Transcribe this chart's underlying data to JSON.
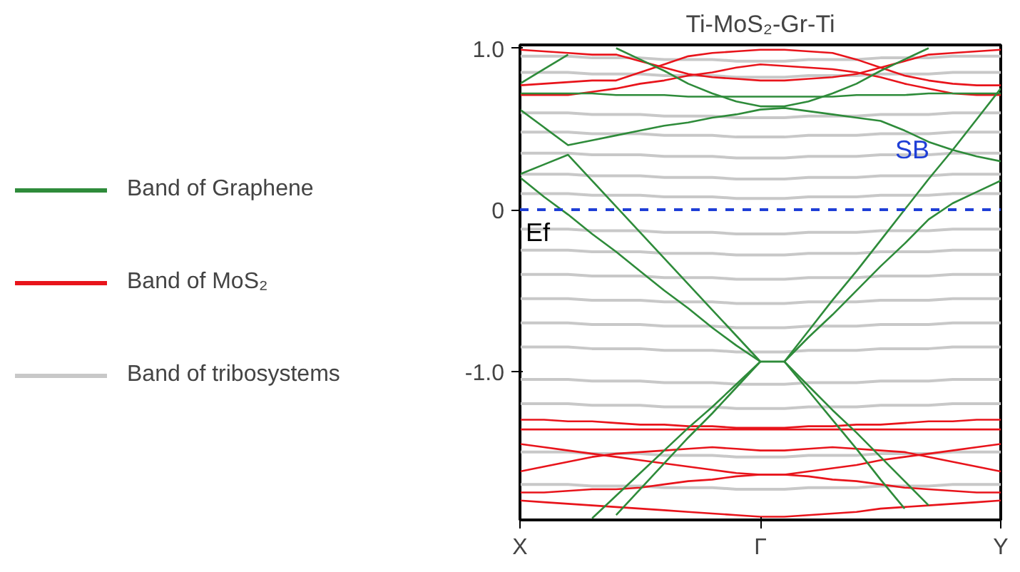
{
  "chart_data": {
    "type": "line",
    "title": "Ti-MoS₂-Gr-Ti",
    "categories": [
      "X",
      null,
      null,
      null,
      null,
      null,
      null,
      null,
      null,
      null,
      "Γ",
      null,
      null,
      null,
      null,
      null,
      null,
      null,
      null,
      null,
      "Y"
    ],
    "ylim": [
      -1.92,
      1.02
    ],
    "yticks": [
      {
        "value": 1,
        "label": "1.0"
      },
      0,
      {
        "value": -1,
        "label": "-1.0"
      }
    ],
    "legend": "left",
    "line_style": "solid",
    "ref_lines": [
      {
        "axis": "y",
        "value": 0,
        "label": "Ef",
        "color": "#1f3fd6",
        "line_style": "dashed"
      }
    ],
    "annotations": [
      "SB"
    ],
    "series": [
      {
        "name": "Band of tribosystems",
        "color": "#c8c8c8",
        "values": [
          0.95,
          0.95,
          0.95,
          0.94,
          0.94,
          0.94,
          0.93,
          0.93,
          0.93,
          0.92,
          0.92,
          0.92,
          0.93,
          0.93,
          0.93,
          0.94,
          0.94,
          0.94,
          0.95,
          0.95,
          0.95
        ]
      },
      {
        "color": "#c8c8c8",
        "values": [
          0.85,
          0.85,
          0.85,
          0.84,
          0.84,
          0.84,
          0.83,
          0.83,
          0.83,
          0.82,
          0.82,
          0.82,
          0.83,
          0.83,
          0.83,
          0.84,
          0.84,
          0.84,
          0.85,
          0.85,
          0.85
        ]
      },
      {
        "color": "#c8c8c8",
        "values": [
          0.6,
          0.6,
          0.6,
          0.59,
          0.59,
          0.59,
          0.58,
          0.58,
          0.58,
          0.57,
          0.57,
          0.57,
          0.58,
          0.58,
          0.58,
          0.59,
          0.59,
          0.59,
          0.6,
          0.6,
          0.6
        ]
      },
      {
        "color": "#c8c8c8",
        "values": [
          0.48,
          0.48,
          0.48,
          0.47,
          0.47,
          0.47,
          0.46,
          0.46,
          0.46,
          0.45,
          0.45,
          0.45,
          0.46,
          0.46,
          0.46,
          0.47,
          0.47,
          0.47,
          0.48,
          0.48,
          0.48
        ]
      },
      {
        "color": "#c8c8c8",
        "values": [
          0.35,
          0.35,
          0.35,
          0.34,
          0.34,
          0.34,
          0.33,
          0.33,
          0.33,
          0.32,
          0.32,
          0.32,
          0.33,
          0.33,
          0.33,
          0.34,
          0.34,
          0.34,
          0.35,
          0.35,
          0.35
        ]
      },
      {
        "color": "#c8c8c8",
        "values": [
          0.22,
          0.22,
          0.22,
          0.21,
          0.21,
          0.21,
          0.2,
          0.2,
          0.2,
          0.19,
          0.19,
          0.19,
          0.2,
          0.2,
          0.2,
          0.21,
          0.21,
          0.21,
          0.22,
          0.22,
          0.22
        ]
      },
      {
        "color": "#c8c8c8",
        "values": [
          0.1,
          0.1,
          0.1,
          0.09,
          0.09,
          0.09,
          0.08,
          0.08,
          0.08,
          0.07,
          0.07,
          0.07,
          0.08,
          0.08,
          0.08,
          0.09,
          0.09,
          0.09,
          0.1,
          0.1,
          0.1
        ]
      },
      {
        "color": "#c8c8c8",
        "values": [
          -0.12,
          -0.12,
          -0.12,
          -0.13,
          -0.13,
          -0.13,
          -0.14,
          -0.14,
          -0.14,
          -0.15,
          -0.15,
          -0.15,
          -0.14,
          -0.14,
          -0.14,
          -0.13,
          -0.13,
          -0.13,
          -0.12,
          -0.12,
          -0.12
        ]
      },
      {
        "color": "#c8c8c8",
        "values": [
          -0.25,
          -0.25,
          -0.25,
          -0.26,
          -0.26,
          -0.26,
          -0.27,
          -0.27,
          -0.27,
          -0.28,
          -0.28,
          -0.28,
          -0.27,
          -0.27,
          -0.27,
          -0.26,
          -0.26,
          -0.26,
          -0.25,
          -0.25,
          -0.25
        ]
      },
      {
        "color": "#c8c8c8",
        "values": [
          -0.4,
          -0.4,
          -0.4,
          -0.41,
          -0.41,
          -0.41,
          -0.42,
          -0.42,
          -0.42,
          -0.43,
          -0.43,
          -0.43,
          -0.42,
          -0.42,
          -0.42,
          -0.41,
          -0.41,
          -0.41,
          -0.4,
          -0.4,
          -0.4
        ]
      },
      {
        "color": "#c8c8c8",
        "values": [
          -0.55,
          -0.55,
          -0.55,
          -0.56,
          -0.56,
          -0.56,
          -0.57,
          -0.57,
          -0.57,
          -0.58,
          -0.58,
          -0.58,
          -0.57,
          -0.57,
          -0.57,
          -0.56,
          -0.56,
          -0.56,
          -0.55,
          -0.55,
          -0.55
        ]
      },
      {
        "color": "#c8c8c8",
        "values": [
          -0.7,
          -0.7,
          -0.7,
          -0.71,
          -0.71,
          -0.71,
          -0.72,
          -0.72,
          -0.72,
          -0.73,
          -0.73,
          -0.73,
          -0.72,
          -0.72,
          -0.72,
          -0.71,
          -0.71,
          -0.71,
          -0.7,
          -0.7,
          -0.7
        ]
      },
      {
        "color": "#c8c8c8",
        "values": [
          -0.85,
          -0.85,
          -0.85,
          -0.86,
          -0.86,
          -0.86,
          -0.87,
          -0.87,
          -0.87,
          -0.88,
          -0.88,
          -0.88,
          -0.87,
          -0.87,
          -0.87,
          -0.86,
          -0.86,
          -0.86,
          -0.85,
          -0.85,
          -0.85
        ]
      },
      {
        "color": "#c8c8c8",
        "values": [
          -1.05,
          -1.05,
          -1.05,
          -1.06,
          -1.06,
          -1.06,
          -1.07,
          -1.07,
          -1.07,
          -1.08,
          -1.08,
          -1.08,
          -1.07,
          -1.07,
          -1.07,
          -1.06,
          -1.06,
          -1.06,
          -1.05,
          -1.05,
          -1.05
        ]
      },
      {
        "color": "#c8c8c8",
        "values": [
          -1.2,
          -1.2,
          -1.2,
          -1.21,
          -1.21,
          -1.21,
          -1.22,
          -1.22,
          -1.22,
          -1.23,
          -1.23,
          -1.23,
          -1.22,
          -1.22,
          -1.22,
          -1.21,
          -1.21,
          -1.21,
          -1.2,
          -1.2,
          -1.2
        ]
      },
      {
        "color": "#c8c8c8",
        "values": [
          -1.5,
          -1.5,
          -1.5,
          -1.51,
          -1.51,
          -1.51,
          -1.52,
          -1.52,
          -1.52,
          -1.53,
          -1.53,
          -1.53,
          -1.52,
          -1.52,
          -1.52,
          -1.51,
          -1.51,
          -1.51,
          -1.5,
          -1.5,
          -1.5
        ]
      },
      {
        "color": "#c8c8c8",
        "values": [
          -1.7,
          -1.7,
          -1.7,
          -1.71,
          -1.71,
          -1.71,
          -1.72,
          -1.72,
          -1.72,
          -1.73,
          -1.73,
          -1.73,
          -1.72,
          -1.72,
          -1.72,
          -1.71,
          -1.71,
          -1.71,
          -1.7,
          -1.7,
          -1.7
        ]
      },
      {
        "name": "Band of MoS₂",
        "color": "#e8141b",
        "values": [
          0.71,
          0.71,
          0.71,
          0.73,
          0.75,
          0.78,
          0.8,
          0.83,
          0.85,
          0.88,
          0.9,
          0.89,
          0.88,
          0.87,
          0.85,
          0.82,
          0.78,
          0.75,
          0.72,
          0.71,
          0.71
        ]
      },
      {
        "color": "#e8141b",
        "values": [
          0.77,
          0.78,
          0.79,
          0.8,
          0.8,
          0.85,
          0.9,
          0.95,
          0.97,
          0.98,
          0.99,
          0.99,
          0.98,
          0.97,
          0.93,
          0.88,
          0.83,
          0.8,
          0.78,
          0.77,
          0.77
        ]
      },
      {
        "color": "#e8141b",
        "values": [
          0.99,
          0.98,
          0.97,
          0.96,
          0.96,
          0.92,
          0.88,
          0.84,
          0.82,
          0.81,
          0.8,
          0.8,
          0.81,
          0.82,
          0.84,
          0.88,
          0.92,
          0.96,
          0.97,
          0.98,
          0.99
        ]
      },
      {
        "color": "#e8141b",
        "values": [
          -1.3,
          -1.3,
          -1.31,
          -1.31,
          -1.32,
          -1.33,
          -1.33,
          -1.34,
          -1.34,
          -1.35,
          -1.35,
          -1.35,
          -1.34,
          -1.34,
          -1.33,
          -1.33,
          -1.32,
          -1.31,
          -1.31,
          -1.3,
          -1.3
        ]
      },
      {
        "color": "#e8141b",
        "values": [
          -1.36,
          -1.36,
          -1.36,
          -1.36,
          -1.36,
          -1.36,
          -1.36,
          -1.36,
          -1.36,
          -1.36,
          -1.36,
          -1.36,
          -1.36,
          -1.36,
          -1.36,
          -1.36,
          -1.36,
          -1.36,
          -1.36,
          -1.36,
          -1.36
        ]
      },
      {
        "color": "#e8141b",
        "values": [
          -1.45,
          -1.47,
          -1.49,
          -1.51,
          -1.53,
          -1.55,
          -1.57,
          -1.59,
          -1.61,
          -1.63,
          -1.64,
          -1.64,
          -1.62,
          -1.6,
          -1.58,
          -1.55,
          -1.53,
          -1.51,
          -1.49,
          -1.47,
          -1.45
        ]
      },
      {
        "color": "#e8141b",
        "values": [
          -1.62,
          -1.59,
          -1.56,
          -1.53,
          -1.51,
          -1.5,
          -1.49,
          -1.48,
          -1.47,
          -1.48,
          -1.49,
          -1.49,
          -1.48,
          -1.47,
          -1.48,
          -1.49,
          -1.5,
          -1.53,
          -1.56,
          -1.59,
          -1.62
        ]
      },
      {
        "color": "#e8141b",
        "values": [
          -1.75,
          -1.75,
          -1.74,
          -1.73,
          -1.73,
          -1.72,
          -1.7,
          -1.68,
          -1.67,
          -1.65,
          -1.64,
          -1.64,
          -1.65,
          -1.67,
          -1.68,
          -1.7,
          -1.72,
          -1.73,
          -1.74,
          -1.75,
          -1.75
        ]
      },
      {
        "color": "#e8141b",
        "values": [
          -1.8,
          -1.81,
          -1.82,
          -1.83,
          -1.84,
          -1.85,
          -1.86,
          -1.87,
          -1.88,
          -1.89,
          -1.9,
          -1.9,
          -1.89,
          -1.88,
          -1.87,
          -1.85,
          -1.84,
          -1.83,
          -1.82,
          -1.81,
          -1.8
        ]
      },
      {
        "name": "Band of Graphene",
        "color": "#2e8b3a",
        "values": [
          0.2,
          0.08,
          -0.03,
          -0.15,
          -0.26,
          -0.38,
          -0.5,
          -0.61,
          -0.73,
          -0.84,
          -0.94,
          -0.94,
          -0.75,
          -0.56,
          -0.38,
          -0.19,
          0.0,
          0.19,
          0.37,
          0.56,
          0.75
        ]
      },
      {
        "color": "#2e8b3a",
        "values": [
          0.22,
          0.28,
          0.34,
          0.18,
          0.02,
          -0.14,
          -0.3,
          -0.46,
          -0.62,
          -0.78,
          -0.94,
          -0.94,
          -0.79,
          -0.65,
          -0.5,
          -0.35,
          -0.21,
          -0.06,
          0.04,
          0.11,
          0.18
        ]
      },
      {
        "color": "#2e8b3a",
        "values": [
          null,
          null,
          null,
          -1.91,
          -1.77,
          -1.63,
          -1.49,
          -1.35,
          -1.22,
          -1.08,
          -0.94,
          null,
          null,
          null,
          null,
          null,
          null,
          null,
          null,
          null,
          null
        ]
      },
      {
        "color": "#2e8b3a",
        "values": [
          null,
          null,
          null,
          null,
          -1.89,
          -1.73,
          -1.57,
          -1.41,
          -1.26,
          -1.1,
          -0.94,
          null,
          null,
          null,
          null,
          null,
          null,
          null,
          null,
          null,
          null
        ]
      },
      {
        "color": "#2e8b3a",
        "values": [
          null,
          null,
          null,
          null,
          null,
          null,
          null,
          null,
          null,
          null,
          null,
          -0.94,
          -1.12,
          -1.3,
          -1.48,
          -1.67,
          -1.85,
          null,
          null,
          null,
          null
        ]
      },
      {
        "color": "#2e8b3a",
        "values": [
          null,
          null,
          null,
          null,
          null,
          null,
          null,
          null,
          null,
          null,
          null,
          -0.94,
          -1.09,
          -1.24,
          -1.38,
          -1.53,
          -1.68,
          -1.83,
          null,
          null,
          null
        ]
      },
      {
        "color": "#2e8b3a",
        "values": [
          0.62,
          0.51,
          0.4,
          0.43,
          0.46,
          0.49,
          0.52,
          0.54,
          0.57,
          0.59,
          0.62,
          0.63,
          0.61,
          0.59,
          0.57,
          0.55,
          0.49,
          0.42,
          0.37,
          0.33,
          0.3
        ]
      },
      {
        "color": "#2e8b3a",
        "values": [
          0.72,
          0.72,
          0.72,
          0.72,
          0.71,
          0.71,
          0.71,
          0.7,
          0.7,
          0.7,
          0.7,
          0.7,
          0.7,
          0.7,
          0.71,
          0.71,
          0.71,
          0.72,
          0.72,
          0.72,
          0.72
        ]
      },
      {
        "color": "#2e8b3a",
        "values": [
          null,
          null,
          null,
          null,
          1.0,
          0.93,
          0.86,
          0.78,
          0.72,
          0.67,
          0.64,
          0.64,
          0.67,
          0.72,
          0.78,
          0.86,
          0.93,
          1.0,
          null,
          null,
          null
        ]
      },
      {
        "color": "#2e8b3a",
        "values": [
          0.78,
          0.87,
          0.96,
          null,
          null,
          null,
          null,
          null,
          null,
          null,
          null,
          null,
          null,
          null,
          null,
          null,
          null,
          null,
          null,
          null,
          null
        ]
      }
    ]
  }
}
